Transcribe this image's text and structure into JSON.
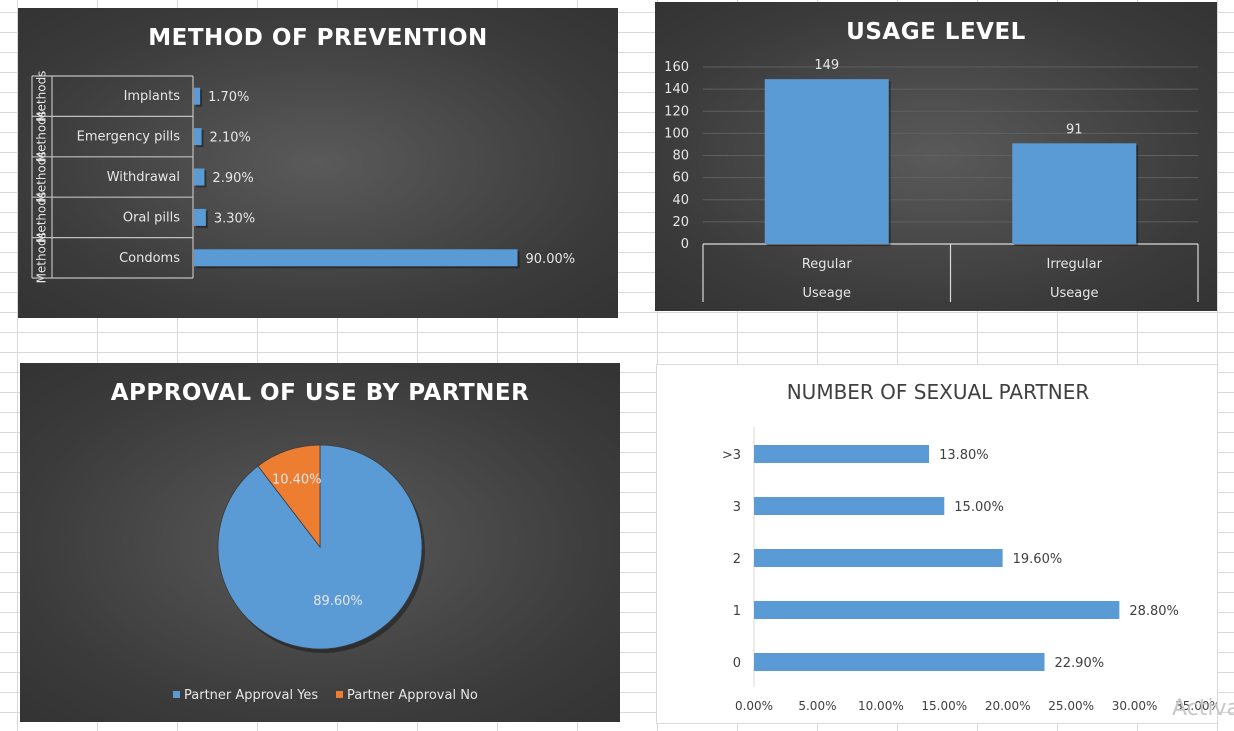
{
  "chart_data": [
    {
      "type": "bar",
      "orientation": "horizontal",
      "title": "METHOD OF PREVENTION",
      "group_label": "Methods",
      "categories": [
        "Condoms",
        "Oral pills",
        "Withdrawal",
        "Emergency pills",
        "Implants"
      ],
      "values": [
        90.0,
        3.3,
        2.9,
        2.1,
        1.7
      ],
      "value_labels": [
        "90.00%",
        "3.30%",
        "2.90%",
        "2.10%",
        "1.70%"
      ],
      "xlim": [
        0,
        100
      ],
      "color": "#5b9bd5",
      "grid": false,
      "legend": "none"
    },
    {
      "type": "bar",
      "orientation": "vertical",
      "title": "USAGE LEVEL",
      "categories": [
        [
          "Regular",
          "Useage"
        ],
        [
          "Irregular",
          "Useage"
        ]
      ],
      "values": [
        149,
        91
      ],
      "value_labels": [
        "149",
        "91"
      ],
      "ylim": [
        0,
        160
      ],
      "yticks": [
        "0",
        "20",
        "40",
        "60",
        "80",
        "100",
        "120",
        "140",
        "160"
      ],
      "color": "#5b9bd5",
      "grid": true,
      "legend": "none"
    },
    {
      "type": "pie",
      "title": "APPROVAL OF USE BY PARTNER",
      "categories": [
        "Partner Approval Yes",
        "Partner Approval No"
      ],
      "values": [
        89.6,
        10.4
      ],
      "value_labels": [
        "89.60%",
        "10.40%"
      ],
      "colors": [
        "#5b9bd5",
        "#ed7d31"
      ],
      "legend": "bottom"
    },
    {
      "type": "bar",
      "orientation": "horizontal",
      "title": "NUMBER OF SEXUAL PARTNER",
      "categories": [
        "0",
        "1",
        "2",
        "3",
        ">3"
      ],
      "values": [
        22.9,
        28.8,
        19.6,
        15.0,
        13.8
      ],
      "value_labels": [
        "22.90%",
        "28.80%",
        "19.60%",
        "15.00%",
        "13.80%"
      ],
      "xlim": [
        0,
        35
      ],
      "xticks": [
        "0.00%",
        "5.00%",
        "10.00%",
        "15.00%",
        "20.00%",
        "25.00%",
        "30.00%",
        "35.00%"
      ],
      "color": "#5b9bd5",
      "grid": false,
      "legend": "none"
    }
  ],
  "watermark": "Activa"
}
